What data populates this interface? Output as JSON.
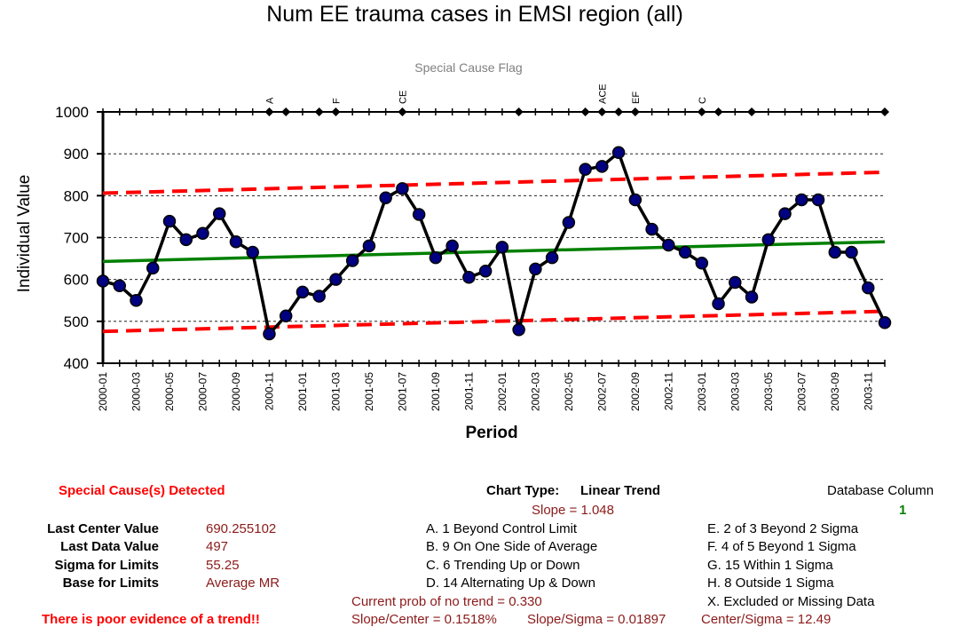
{
  "chart_data": {
    "type": "line",
    "title": "Num EE trauma cases in EMSI region (all)",
    "subtitle": "Special Cause Flag",
    "xlabel": "Period",
    "ylabel": "Individual Value",
    "ylim": [
      400,
      1000
    ],
    "yticks": [
      400,
      500,
      600,
      700,
      800,
      900,
      1000
    ],
    "grid": true,
    "x": [
      "2000-01",
      "2000-02",
      "2000-03",
      "2000-04",
      "2000-05",
      "2000-06",
      "2000-07",
      "2000-08",
      "2000-09",
      "2000-10",
      "2000-11",
      "2000-12",
      "2001-01",
      "2001-02",
      "2001-03",
      "2001-04",
      "2001-05",
      "2001-06",
      "2001-07",
      "2001-08",
      "2001-09",
      "2001-10",
      "2001-11",
      "2001-12",
      "2002-01",
      "2002-02",
      "2002-03",
      "2002-04",
      "2002-05",
      "2002-06",
      "2002-07",
      "2002-08",
      "2002-09",
      "2002-10",
      "2002-11",
      "2002-12",
      "2003-01",
      "2003-02",
      "2003-03",
      "2003-04",
      "2003-05",
      "2003-06",
      "2003-07",
      "2003-08",
      "2003-09",
      "2003-10",
      "2003-11",
      "2003-12"
    ],
    "xtick_labels": [
      "2000-01",
      "2000-03",
      "2000-05",
      "2000-07",
      "2000-09",
      "2000-11",
      "2001-01",
      "2001-03",
      "2001-05",
      "2001-07",
      "2001-09",
      "2001-11",
      "2002-01",
      "2002-03",
      "2002-05",
      "2002-07",
      "2002-09",
      "2002-11",
      "2003-01",
      "2003-03",
      "2003-05",
      "2003-07",
      "2003-09",
      "2003-11"
    ],
    "series": [
      {
        "values": [
          596,
          585,
          550,
          627,
          739,
          695,
          710,
          757,
          690,
          665,
          470,
          513,
          570,
          560,
          600,
          645,
          680,
          795,
          817,
          755,
          652,
          680,
          605,
          620,
          677,
          480,
          625,
          652,
          736,
          863,
          870,
          903,
          790,
          720,
          682,
          665,
          639,
          542,
          593,
          558,
          695,
          757,
          790,
          790,
          665,
          665,
          580,
          497
        ]
      }
    ],
    "trend": {
      "center": [
        643,
        690
      ],
      "upper": [
        806,
        856
      ],
      "lower": [
        476,
        524
      ]
    },
    "flags": [
      {
        "index": 10,
        "label": "A"
      },
      {
        "index": 11,
        "label": ""
      },
      {
        "index": 13,
        "label": ""
      },
      {
        "index": 14,
        "label": "F"
      },
      {
        "index": 18,
        "label": "CE"
      },
      {
        "index": 25,
        "label": ""
      },
      {
        "index": 29,
        "label": ""
      },
      {
        "index": 30,
        "label": "ACE"
      },
      {
        "index": 31,
        "label": ""
      },
      {
        "index": 32,
        "label": "EF"
      },
      {
        "index": 36,
        "label": "C"
      },
      {
        "index": 37,
        "label": ""
      },
      {
        "index": 39,
        "label": ""
      },
      {
        "index": 47,
        "label": ""
      }
    ],
    "colors": {
      "data": "#000000",
      "markers": "#000080",
      "center": "#008000",
      "limits": "#ff0000"
    }
  },
  "panel": {
    "special_cause": "Special Cause(s) Detected",
    "last_center_label": "Last Center Value",
    "last_center_value": "690.255102",
    "last_data_label": "Last Data Value",
    "last_data_value": "497",
    "sigma_label": "Sigma for Limits",
    "sigma_value": "55.25",
    "base_label": "Base for Limits",
    "base_value": "Average MR",
    "trend_note": "There is poor evidence of a trend!!",
    "chart_type_label": "Chart Type:",
    "chart_type_value": "Linear Trend",
    "slope": "Slope = 1.048",
    "rules_left": [
      "A.  1 Beyond Control Limit",
      "B.  9 On One Side of Average",
      "C.  6 Trending Up or Down",
      "D.  14 Alternating  Up & Down"
    ],
    "rules_right": [
      "E.  2 of 3 Beyond 2 Sigma",
      "F.  4 of 5 Beyond 1 Sigma",
      "G.  15 Within 1 Sigma",
      "H.  8 Outside 1 Sigma",
      "X.  Excluded or Missing Data"
    ],
    "prob_no_trend": "Current prob of no trend = 0.330",
    "slope_center": "Slope/Center = 0.1518%",
    "slope_sigma": "Slope/Sigma = 0.01897",
    "center_sigma": "Center/Sigma = 12.49",
    "db_column_label": "Database Column",
    "db_column_value": "1"
  }
}
